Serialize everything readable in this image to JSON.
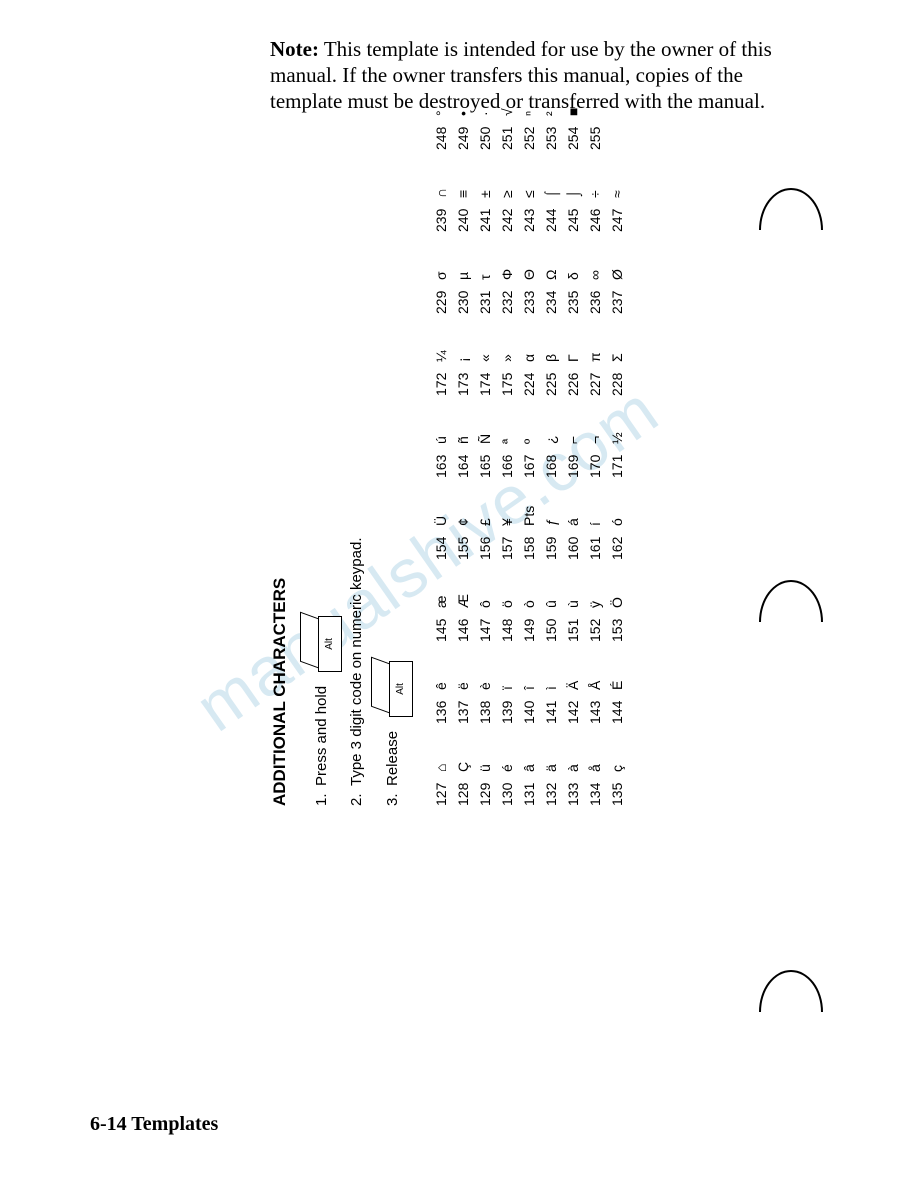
{
  "note": {
    "label": "Note:",
    "text": "This template is intended for use by the owner of this manual. If the owner transfers this manual, copies of the template must be destroyed or transferred with the manual."
  },
  "watermark": "manualshive.com",
  "footer": "6-14 Templates",
  "panel": {
    "title": "ADDITIONAL CHARACTERS",
    "step1": "Press and hold",
    "step2": "Type 3 digit code on numeric keypad.",
    "step3": "Release",
    "altLabel": "Alt"
  },
  "codes": [
    [
      {
        "n": "127",
        "c": "⌂"
      },
      {
        "n": "136",
        "c": "ê"
      },
      {
        "n": "145",
        "c": "æ"
      },
      {
        "n": "154",
        "c": "Ü"
      },
      {
        "n": "163",
        "c": "ú"
      },
      {
        "n": "172",
        "c": "¼"
      },
      {
        "n": "229",
        "c": "σ"
      },
      {
        "n": "239",
        "c": "∩"
      },
      {
        "n": "248",
        "c": "°"
      }
    ],
    [
      {
        "n": "128",
        "c": "Ç"
      },
      {
        "n": "137",
        "c": "ë"
      },
      {
        "n": "146",
        "c": "Æ"
      },
      {
        "n": "155",
        "c": "¢"
      },
      {
        "n": "164",
        "c": "ñ"
      },
      {
        "n": "173",
        "c": "¡"
      },
      {
        "n": "230",
        "c": "µ"
      },
      {
        "n": "240",
        "c": "≡"
      },
      {
        "n": "249",
        "c": "•"
      }
    ],
    [
      {
        "n": "129",
        "c": "ü"
      },
      {
        "n": "138",
        "c": "è"
      },
      {
        "n": "147",
        "c": "ô"
      },
      {
        "n": "156",
        "c": "£"
      },
      {
        "n": "165",
        "c": "Ñ"
      },
      {
        "n": "174",
        "c": "«"
      },
      {
        "n": "231",
        "c": "τ"
      },
      {
        "n": "241",
        "c": "±"
      },
      {
        "n": "250",
        "c": "·"
      }
    ],
    [
      {
        "n": "130",
        "c": "é"
      },
      {
        "n": "139",
        "c": "ï"
      },
      {
        "n": "148",
        "c": "ö"
      },
      {
        "n": "157",
        "c": "¥"
      },
      {
        "n": "166",
        "c": "ª"
      },
      {
        "n": "175",
        "c": "»"
      },
      {
        "n": "232",
        "c": "Φ"
      },
      {
        "n": "242",
        "c": "≥"
      },
      {
        "n": "251",
        "c": "√"
      }
    ],
    [
      {
        "n": "131",
        "c": "â"
      },
      {
        "n": "140",
        "c": "î"
      },
      {
        "n": "149",
        "c": "ò"
      },
      {
        "n": "158",
        "c": "Pts"
      },
      {
        "n": "167",
        "c": "º"
      },
      {
        "n": "224",
        "c": "α"
      },
      {
        "n": "233",
        "c": "Θ"
      },
      {
        "n": "243",
        "c": "≤"
      },
      {
        "n": "252",
        "c": "ⁿ"
      }
    ],
    [
      {
        "n": "132",
        "c": "ä"
      },
      {
        "n": "141",
        "c": "ì"
      },
      {
        "n": "150",
        "c": "û"
      },
      {
        "n": "159",
        "c": "ƒ"
      },
      {
        "n": "168",
        "c": "¿"
      },
      {
        "n": "225",
        "c": "β"
      },
      {
        "n": "234",
        "c": "Ω"
      },
      {
        "n": "244",
        "c": "⌠"
      },
      {
        "n": "253",
        "c": "²"
      }
    ],
    [
      {
        "n": "133",
        "c": "à"
      },
      {
        "n": "142",
        "c": "Ä"
      },
      {
        "n": "151",
        "c": "ù"
      },
      {
        "n": "160",
        "c": "á"
      },
      {
        "n": "169",
        "c": "⌐"
      },
      {
        "n": "226",
        "c": "Γ"
      },
      {
        "n": "235",
        "c": "δ"
      },
      {
        "n": "245",
        "c": "⌡"
      },
      {
        "n": "254",
        "c": "■"
      }
    ],
    [
      {
        "n": "134",
        "c": "å"
      },
      {
        "n": "143",
        "c": "Å"
      },
      {
        "n": "152",
        "c": "ÿ"
      },
      {
        "n": "161",
        "c": "í"
      },
      {
        "n": "170",
        "c": "¬"
      },
      {
        "n": "227",
        "c": "π"
      },
      {
        "n": "236",
        "c": "∞"
      },
      {
        "n": "246",
        "c": "÷"
      },
      {
        "n": "255",
        "c": " "
      }
    ],
    [
      {
        "n": "135",
        "c": "ç"
      },
      {
        "n": "144",
        "c": "É"
      },
      {
        "n": "153",
        "c": "Ö"
      },
      {
        "n": "162",
        "c": "ó"
      },
      {
        "n": "171",
        "c": "½"
      },
      {
        "n": "228",
        "c": "Σ"
      },
      {
        "n": "237",
        "c": "Ø"
      },
      {
        "n": "247",
        "c": "≈"
      },
      {
        "n": "",
        "c": ""
      }
    ]
  ]
}
